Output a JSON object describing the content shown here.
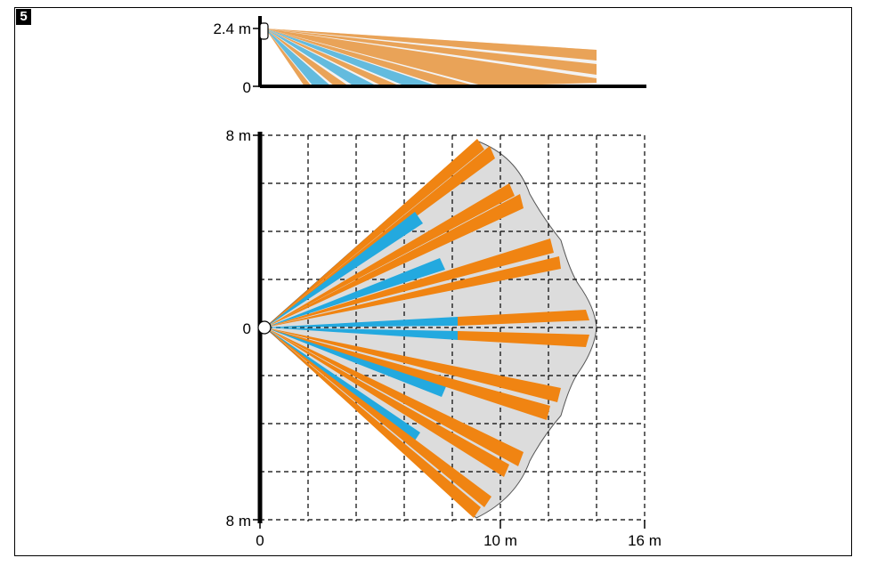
{
  "figure_number": "5",
  "colors": {
    "zone_orange": "#F08412",
    "zone_blue": "#23A9DF",
    "coverage_fill": "#DCDCDC",
    "axis": "#000000",
    "grid": "#000000"
  },
  "side_view": {
    "height_label": "2.4 m",
    "floor_label": "0"
  },
  "top_view": {
    "top_label": "8 m",
    "center_label": "0",
    "bottom_label": "8 m",
    "x_labels": [
      "0",
      "10 m",
      "16 m"
    ]
  },
  "icons": [
    "detector-icon"
  ]
}
